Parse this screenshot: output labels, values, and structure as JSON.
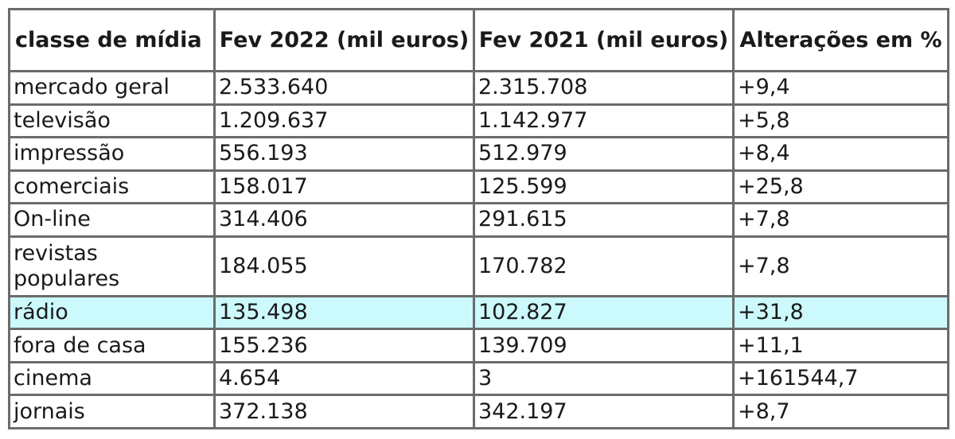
{
  "table": {
    "headers": [
      "classe de mídia",
      "Fev 2022 (mil euros)",
      "Fev 2021 (mil euros)",
      "Alterações em %"
    ],
    "highlight_color": "#ccf9fc",
    "rows": [
      [
        "mercado geral",
        "2.533.640",
        "2.315.708",
        "+9,4"
      ],
      [
        "televisão",
        "1.209.637",
        "1.142.977",
        "+5,8"
      ],
      [
        "impressão",
        "556.193",
        "512.979",
        "+8,4"
      ],
      [
        "comerciais",
        "158.017",
        "125.599",
        "+25,8"
      ],
      [
        "On-line",
        "314.406",
        "291.615",
        "+7,8"
      ],
      [
        "revistas populares",
        "184.055",
        "170.782",
        "+7,8"
      ],
      [
        "rádio",
        "135.498",
        "102.827",
        "+31,8"
      ],
      [
        "fora de casa",
        "155.236",
        "139.709",
        "+11,1"
      ],
      [
        "cinema",
        "4.654",
        "3",
        "+161544,7"
      ],
      [
        "jornais",
        "372.138",
        "342.197",
        "+8,7"
      ]
    ]
  }
}
